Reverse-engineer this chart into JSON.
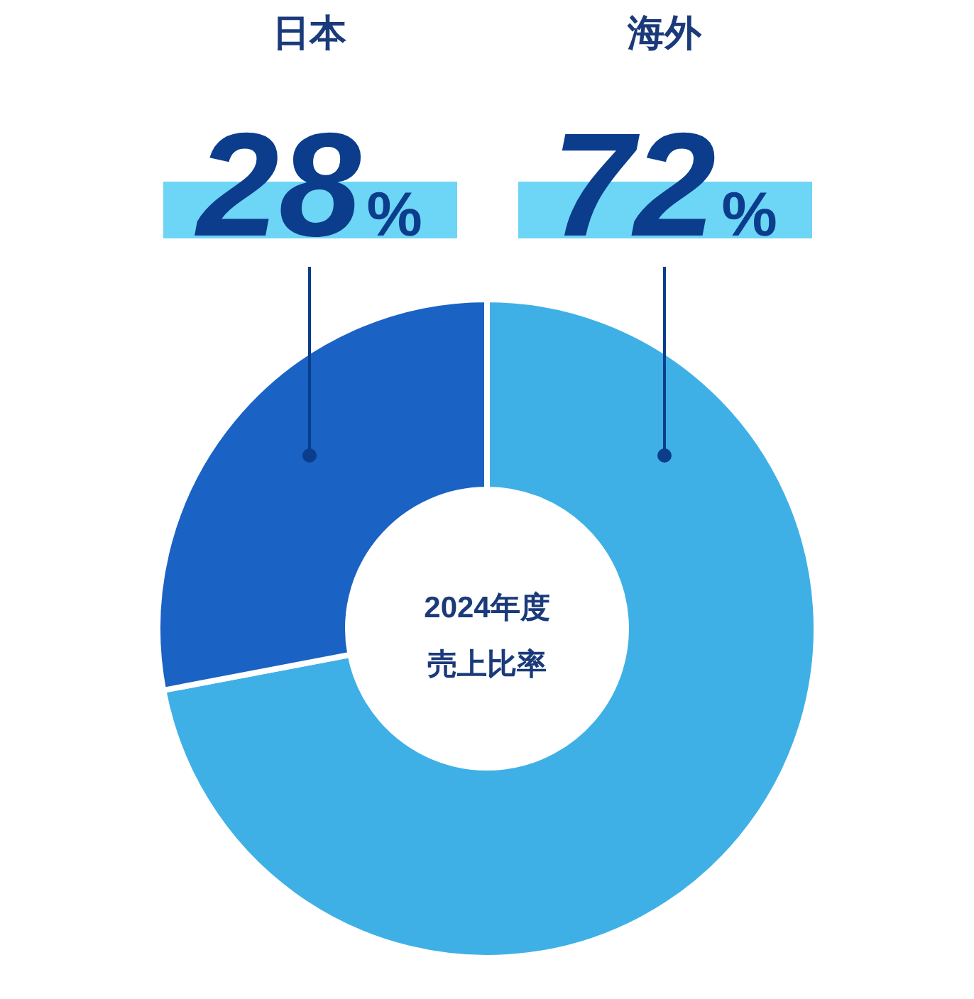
{
  "chart_data": {
    "type": "donut",
    "title": "2024年度",
    "subtitle": "売上比率",
    "categories": [
      "日本",
      "海外"
    ],
    "values": [
      28,
      72
    ],
    "colors": [
      "#1a62c4",
      "#3fb0e6"
    ],
    "value_labels": [
      "28%",
      "72%"
    ]
  }
}
